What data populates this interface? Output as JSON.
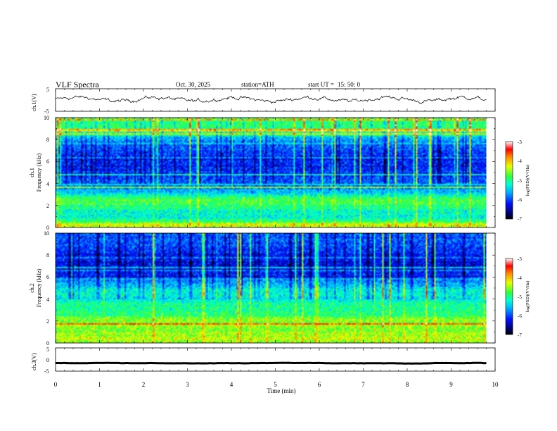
{
  "header": {
    "title": "VLF Spectra",
    "date": "Oct. 30, 2025",
    "station": "station=ATH",
    "start_label": "start UT =",
    "start_time": "15: 50: 0"
  },
  "chart_data": [
    {
      "name": "ch1-voltage",
      "type": "line",
      "ylabel": "ch.1(V)",
      "ylim": [
        -5,
        5
      ],
      "y_ticks": [
        "5",
        "-5"
      ],
      "xlim": [
        0,
        10
      ],
      "mean_level": 0.3,
      "amplitude": 1.5,
      "data_end_min": 9.8
    },
    {
      "name": "ch1-spectrogram",
      "type": "heatmap",
      "ylabel_line1": "ch.1",
      "ylabel_line2": "Frequency (kHz)",
      "ylim": [
        0,
        10
      ],
      "y_ticks": [
        "0",
        "2",
        "4",
        "6",
        "8",
        "10"
      ],
      "xlim": [
        0,
        10
      ],
      "data_end_min": 9.8,
      "colorbar": {
        "label": "log(PSD)(V²/Hz)",
        "range": [
          -7,
          -3
        ],
        "ticks": [
          "-3",
          "-4",
          "-5",
          "-6",
          "-7"
        ]
      },
      "band_profile_kHz": [
        [
          0,
          -4.6
        ],
        [
          0.3,
          -4.2
        ],
        [
          0.6,
          -5.0
        ],
        [
          1.0,
          -5.3
        ],
        [
          1.6,
          -5.1
        ],
        [
          2.0,
          -4.9
        ],
        [
          2.3,
          -4.7
        ],
        [
          2.7,
          -5.0
        ],
        [
          3.2,
          -5.5
        ],
        [
          4.0,
          -5.9
        ],
        [
          5.0,
          -6.1
        ],
        [
          6.0,
          -6.2
        ],
        [
          7.0,
          -6.0
        ],
        [
          8.0,
          -5.6
        ],
        [
          9.0,
          -5.0
        ],
        [
          10.0,
          -4.8
        ]
      ]
    },
    {
      "name": "ch2-spectrogram",
      "type": "heatmap",
      "ylabel_line1": "ch.2",
      "ylabel_line2": "Frequency (kHz)",
      "ylim": [
        0,
        10
      ],
      "y_ticks": [
        "0",
        "2",
        "4",
        "6",
        "8",
        "10"
      ],
      "xlim": [
        0,
        10
      ],
      "data_end_min": 9.8,
      "colorbar": {
        "label": "log(PSD)(V²/Hz)",
        "range": [
          -7,
          -3
        ],
        "ticks": [
          "-3",
          "-4",
          "-5",
          "-6",
          "-7"
        ]
      },
      "band_profile_kHz": [
        [
          0,
          -4.5
        ],
        [
          0.5,
          -4.4
        ],
        [
          1.0,
          -4.6
        ],
        [
          2.0,
          -4.5
        ],
        [
          2.5,
          -4.8
        ],
        [
          3.0,
          -5.1
        ],
        [
          3.5,
          -5.0
        ],
        [
          4.0,
          -5.4
        ],
        [
          4.5,
          -5.2
        ],
        [
          5.0,
          -5.3
        ],
        [
          5.5,
          -5.7
        ],
        [
          6.0,
          -6.1
        ],
        [
          7.0,
          -6.3
        ],
        [
          8.0,
          -6.2
        ],
        [
          9.0,
          -6.0
        ],
        [
          10.0,
          -5.9
        ]
      ]
    },
    {
      "name": "ch3-voltage",
      "type": "line",
      "ylabel": "ch.3(V)",
      "ylim": [
        -5,
        5
      ],
      "y_ticks": [
        "5",
        "0",
        "-5"
      ],
      "xlim": [
        0,
        10
      ],
      "mean_level": -1.6,
      "amplitude": 0.15,
      "data_end_min": 9.8
    },
    {
      "name": "time-axis",
      "type": "axis",
      "xlabel": "Time (min)",
      "xlim": [
        0,
        10
      ],
      "x_ticks": [
        "0",
        "1",
        "2",
        "3",
        "4",
        "5",
        "6",
        "7",
        "8",
        "9",
        "10"
      ]
    }
  ]
}
